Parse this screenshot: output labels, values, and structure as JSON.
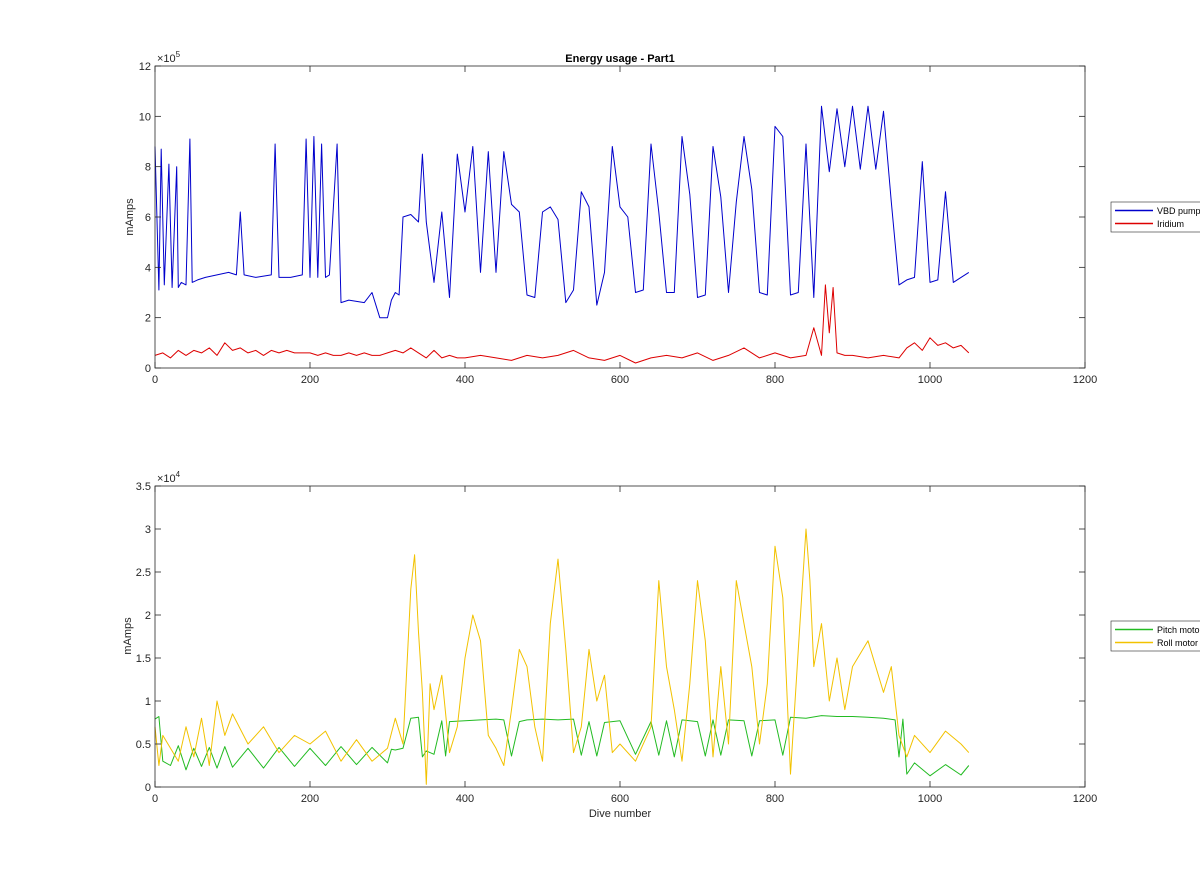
{
  "chart_data": [
    {
      "type": "line",
      "title": "Energy usage - Part1",
      "xlabel": "",
      "ylabel": "mAmps",
      "xlim": [
        0,
        1200
      ],
      "ylim": [
        0,
        1200000
      ],
      "xticks": [
        0,
        200,
        400,
        600,
        800,
        1000,
        1200
      ],
      "xtick_labels": [
        "0",
        "200",
        "400",
        "600",
        "800",
        "1000",
        "1200"
      ],
      "yticks": [
        0,
        200000,
        400000,
        600000,
        800000,
        1000000,
        1200000
      ],
      "ytick_labels": [
        "0",
        "2",
        "4",
        "6",
        "8",
        "10",
        "12"
      ],
      "y_exponent_base": "×10",
      "y_exponent": "5",
      "grid": false,
      "legend_position": "outside-right",
      "series": [
        {
          "name": "VBD pump",
          "color": "#0000cc",
          "x": [
            0,
            5,
            8,
            12,
            18,
            22,
            28,
            30,
            34,
            40,
            45,
            48,
            55,
            65,
            80,
            95,
            105,
            110,
            115,
            130,
            150,
            155,
            160,
            175,
            190,
            195,
            200,
            205,
            210,
            215,
            220,
            225,
            235,
            240,
            250,
            270,
            280,
            290,
            300,
            305,
            310,
            315,
            320,
            330,
            340,
            345,
            350,
            360,
            370,
            380,
            390,
            400,
            410,
            420,
            430,
            440,
            450,
            460,
            470,
            480,
            490,
            500,
            510,
            520,
            530,
            540,
            550,
            560,
            570,
            580,
            590,
            600,
            610,
            620,
            630,
            640,
            650,
            660,
            670,
            680,
            690,
            700,
            710,
            720,
            730,
            740,
            750,
            760,
            770,
            780,
            790,
            800,
            810,
            820,
            830,
            840,
            850,
            860,
            870,
            880,
            890,
            900,
            910,
            920,
            930,
            940,
            950,
            960,
            970,
            980,
            990,
            1000,
            1010,
            1020,
            1030,
            1040,
            1050
          ],
          "values": [
            880000,
            310000,
            870000,
            330000,
            810000,
            320000,
            800000,
            320000,
            340000,
            330000,
            910000,
            340000,
            350000,
            360000,
            370000,
            380000,
            370000,
            620000,
            370000,
            360000,
            370000,
            890000,
            360000,
            360000,
            370000,
            910000,
            360000,
            920000,
            360000,
            890000,
            360000,
            370000,
            890000,
            260000,
            270000,
            260000,
            300000,
            200000,
            200000,
            270000,
            300000,
            290000,
            600000,
            610000,
            580000,
            850000,
            580000,
            340000,
            620000,
            280000,
            850000,
            620000,
            880000,
            380000,
            860000,
            380000,
            860000,
            650000,
            620000,
            290000,
            280000,
            620000,
            640000,
            590000,
            260000,
            310000,
            700000,
            640000,
            250000,
            380000,
            880000,
            640000,
            600000,
            300000,
            310000,
            890000,
            620000,
            300000,
            300000,
            920000,
            690000,
            280000,
            290000,
            880000,
            680000,
            300000,
            660000,
            920000,
            710000,
            300000,
            290000,
            960000,
            920000,
            290000,
            300000,
            890000,
            280000,
            1040000,
            780000,
            1030000,
            800000,
            1040000,
            790000,
            1040000,
            790000,
            1020000,
            660000,
            330000,
            350000,
            360000,
            820000,
            340000,
            350000,
            700000,
            340000,
            360000,
            380000
          ]
        },
        {
          "name": "Iridium",
          "color": "#dd0000",
          "x": [
            0,
            10,
            20,
            30,
            40,
            50,
            60,
            70,
            80,
            90,
            100,
            110,
            120,
            130,
            140,
            150,
            160,
            170,
            180,
            190,
            200,
            210,
            220,
            230,
            240,
            250,
            260,
            270,
            280,
            290,
            300,
            310,
            320,
            330,
            340,
            350,
            360,
            370,
            380,
            390,
            400,
            420,
            440,
            460,
            480,
            500,
            520,
            540,
            560,
            580,
            600,
            620,
            640,
            660,
            680,
            700,
            720,
            740,
            760,
            780,
            800,
            820,
            840,
            850,
            860,
            865,
            870,
            875,
            880,
            890,
            900,
            920,
            940,
            960,
            970,
            980,
            990,
            1000,
            1010,
            1020,
            1030,
            1040,
            1050
          ],
          "values": [
            50000,
            60000,
            40000,
            70000,
            50000,
            70000,
            60000,
            80000,
            50000,
            100000,
            70000,
            80000,
            60000,
            70000,
            50000,
            70000,
            60000,
            70000,
            60000,
            60000,
            60000,
            50000,
            60000,
            50000,
            50000,
            60000,
            50000,
            60000,
            50000,
            50000,
            60000,
            70000,
            60000,
            80000,
            60000,
            40000,
            70000,
            40000,
            50000,
            40000,
            40000,
            50000,
            40000,
            30000,
            50000,
            40000,
            50000,
            70000,
            40000,
            30000,
            50000,
            20000,
            40000,
            50000,
            40000,
            60000,
            30000,
            50000,
            80000,
            40000,
            60000,
            40000,
            50000,
            160000,
            50000,
            330000,
            140000,
            320000,
            60000,
            50000,
            50000,
            40000,
            50000,
            40000,
            80000,
            100000,
            70000,
            120000,
            90000,
            100000,
            80000,
            90000,
            60000
          ]
        }
      ]
    },
    {
      "type": "line",
      "title": "",
      "xlabel": "Dive number",
      "ylabel": "mAmps",
      "xlim": [
        0,
        1200
      ],
      "ylim": [
        0,
        35000
      ],
      "xticks": [
        0,
        200,
        400,
        600,
        800,
        1000,
        1200
      ],
      "xtick_labels": [
        "0",
        "200",
        "400",
        "600",
        "800",
        "1000",
        "1200"
      ],
      "yticks": [
        0,
        5000,
        10000,
        15000,
        20000,
        25000,
        30000,
        35000
      ],
      "ytick_labels": [
        "0",
        "0.5",
        "1",
        "1.5",
        "2",
        "2.5",
        "3",
        "3.5"
      ],
      "y_exponent_base": "×10",
      "y_exponent": "4",
      "grid": false,
      "legend_position": "outside-right",
      "series": [
        {
          "name": "Pitch motor",
          "color": "#22bb22",
          "x": [
            0,
            5,
            10,
            20,
            30,
            40,
            50,
            60,
            70,
            80,
            90,
            100,
            120,
            140,
            160,
            180,
            200,
            220,
            240,
            260,
            280,
            300,
            305,
            310,
            320,
            330,
            340,
            345,
            350,
            360,
            370,
            375,
            380,
            400,
            420,
            440,
            450,
            460,
            470,
            480,
            500,
            520,
            540,
            550,
            560,
            570,
            580,
            600,
            620,
            640,
            650,
            660,
            670,
            680,
            700,
            710,
            720,
            730,
            740,
            760,
            770,
            780,
            800,
            810,
            820,
            840,
            860,
            880,
            900,
            920,
            940,
            955,
            960,
            965,
            970,
            980,
            1000,
            1020,
            1040,
            1050
          ],
          "values": [
            7900,
            8200,
            3000,
            2500,
            4800,
            2000,
            4500,
            2400,
            4600,
            2200,
            4700,
            2300,
            4500,
            2200,
            4600,
            2400,
            4500,
            2500,
            4700,
            2600,
            4600,
            2800,
            4400,
            4300,
            4500,
            8000,
            8100,
            3500,
            4200,
            3800,
            7700,
            3600,
            7600,
            7700,
            7800,
            7900,
            7800,
            3600,
            7600,
            7800,
            7900,
            7800,
            7900,
            3700,
            7600,
            3600,
            7500,
            7700,
            3800,
            7600,
            3700,
            7700,
            3500,
            7800,
            7600,
            3600,
            7800,
            3700,
            7800,
            7700,
            3600,
            7700,
            7800,
            3700,
            8100,
            8000,
            8300,
            8200,
            8200,
            8100,
            8000,
            7800,
            3500,
            7900,
            1500,
            2800,
            1300,
            2600,
            1400,
            2500
          ]
        },
        {
          "name": "Roll motor",
          "color": "#f2c200",
          "x": [
            0,
            5,
            10,
            20,
            30,
            40,
            50,
            60,
            70,
            80,
            90,
            100,
            120,
            140,
            160,
            180,
            200,
            220,
            240,
            260,
            280,
            300,
            310,
            320,
            330,
            335,
            340,
            345,
            350,
            355,
            360,
            370,
            380,
            390,
            400,
            410,
            420,
            430,
            440,
            450,
            460,
            470,
            480,
            490,
            500,
            510,
            520,
            530,
            540,
            550,
            560,
            570,
            580,
            590,
            600,
            620,
            640,
            650,
            660,
            670,
            680,
            690,
            700,
            710,
            720,
            730,
            740,
            750,
            760,
            770,
            780,
            790,
            800,
            810,
            820,
            830,
            840,
            845,
            850,
            860,
            870,
            880,
            890,
            900,
            920,
            940,
            950,
            960,
            970,
            980,
            1000,
            1020,
            1040,
            1050
          ],
          "values": [
            7000,
            2500,
            6000,
            4500,
            3000,
            7000,
            3500,
            8000,
            2500,
            10000,
            6000,
            8500,
            5000,
            7000,
            4000,
            6000,
            5000,
            6500,
            3000,
            5500,
            3000,
            4500,
            8000,
            5000,
            23000,
            27000,
            18000,
            11000,
            300,
            12000,
            9000,
            13000,
            4000,
            7000,
            15000,
            20000,
            17000,
            6000,
            4500,
            2500,
            9000,
            16000,
            14000,
            7000,
            3000,
            19000,
            26500,
            16000,
            4000,
            7000,
            16000,
            10000,
            13000,
            4000,
            5000,
            3000,
            7000,
            24000,
            14000,
            9000,
            3000,
            12000,
            24000,
            17000,
            3500,
            14000,
            5000,
            24000,
            19000,
            14000,
            5000,
            12000,
            28000,
            22000,
            1500,
            16000,
            30000,
            24000,
            14000,
            19000,
            10000,
            15000,
            9000,
            14000,
            17000,
            11000,
            14000,
            6000,
            3500,
            6000,
            4000,
            6500,
            5000,
            4000
          ]
        }
      ]
    }
  ]
}
